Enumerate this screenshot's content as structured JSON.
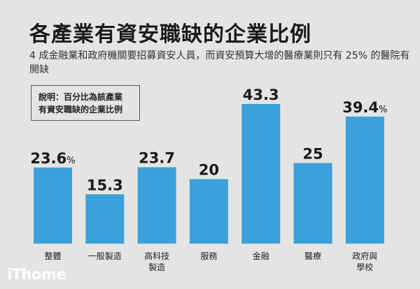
{
  "title": "各產業有資安職缺的企業比例",
  "subtitle": "4 成金融業和政府機關要招募資安人員，而資安預算大增的醫療業則只有 25% 的醫院有開缺",
  "note": [
    "說明：百分比為該產業",
    "有資安職缺的企業比例"
  ],
  "logo": "iThome",
  "colors": {
    "bar": "#3ca0db",
    "background": "#e4e4e2",
    "text": "#1a1a1a"
  },
  "chart_data": {
    "type": "bar",
    "categories": [
      [
        "整體"
      ],
      [
        "一般製造"
      ],
      [
        "高科技",
        "製造"
      ],
      [
        "服務"
      ],
      [
        "金融"
      ],
      [
        "醫療"
      ],
      [
        "政府與",
        "學校"
      ]
    ],
    "values": [
      23.6,
      15.3,
      23.7,
      20,
      43.3,
      25,
      39.4
    ],
    "value_labels": [
      "23.6",
      "15.3",
      "23.7",
      "20",
      "43.3",
      "25",
      "39.4"
    ],
    "value_suffix": [
      "%",
      "",
      "",
      "",
      "",
      "",
      "%"
    ],
    "unit": "%",
    "ylim": [
      0,
      50
    ],
    "grid": false,
    "legend": "none"
  }
}
